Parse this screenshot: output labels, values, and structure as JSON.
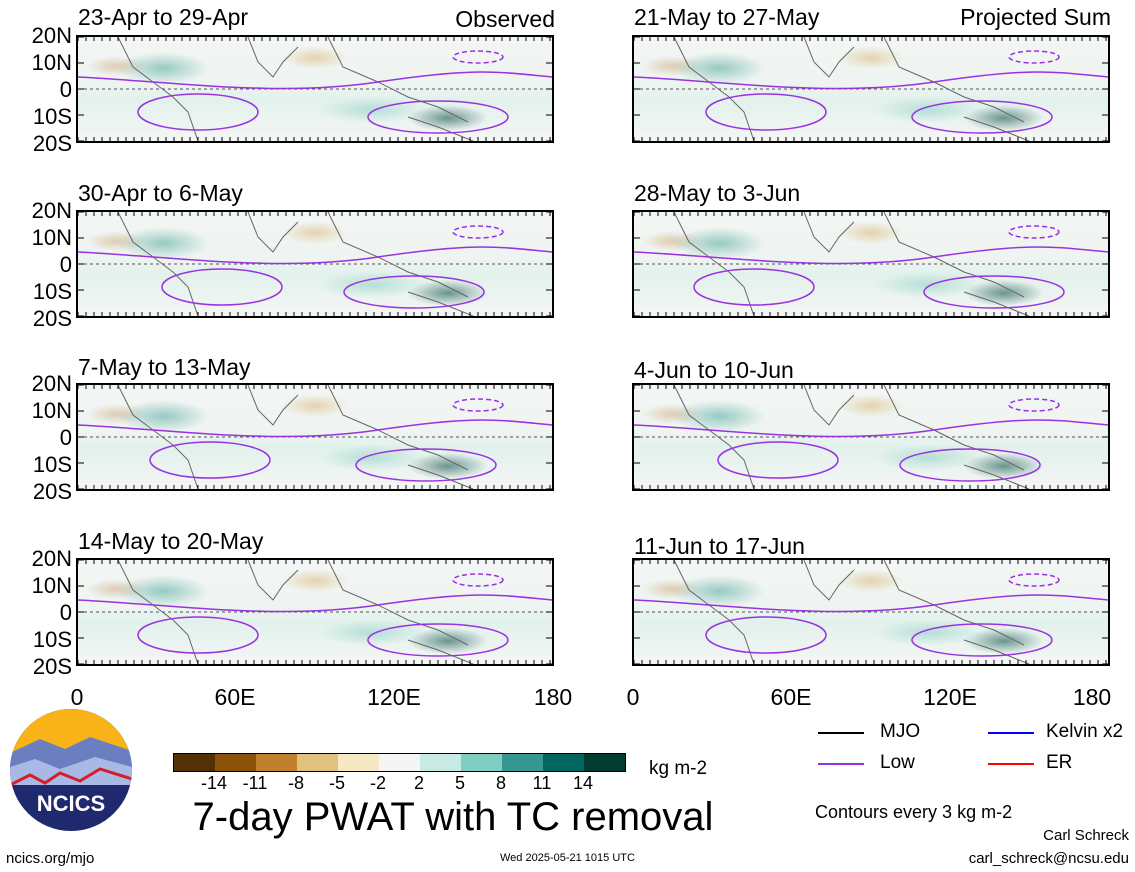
{
  "panels": [
    {
      "title": "23-Apr to 29-Apr",
      "note": "Observed"
    },
    {
      "title": "21-May to 27-May",
      "note": "Projected Sum"
    },
    {
      "title": "30-Apr to 6-May",
      "note": ""
    },
    {
      "title": "28-May to 3-Jun",
      "note": ""
    },
    {
      "title": "7-May to 13-May",
      "note": ""
    },
    {
      "title": "4-Jun to 10-Jun",
      "note": ""
    },
    {
      "title": "14-May to 20-May",
      "note": ""
    },
    {
      "title": "11-Jun to 17-Jun",
      "note": ""
    }
  ],
  "lat_ticks": [
    "20N",
    "10N",
    "0",
    "10S",
    "20S"
  ],
  "lon_ticks": [
    "0",
    "60E",
    "120E",
    "180"
  ],
  "colorbar": {
    "colors": [
      "#543005",
      "#8c510a",
      "#bf812d",
      "#dfc27d",
      "#f6e8c3",
      "#f5f5f5",
      "#c7eae5",
      "#80cdc1",
      "#35978f",
      "#01665e",
      "#003c30"
    ],
    "labels": [
      "-14",
      "-11",
      "-8",
      "-5",
      "-2",
      "2",
      "5",
      "8",
      "11",
      "14"
    ],
    "units": "kg m-2"
  },
  "legend": {
    "items": [
      {
        "label": "MJO",
        "color": "#000000"
      },
      {
        "label": "Kelvin x2",
        "color": "#0000ff"
      },
      {
        "label": "Low",
        "color": "#9932e0"
      },
      {
        "label": "ER",
        "color": "#ff0000"
      }
    ],
    "contours_note": "Contours every 3 kg m-2"
  },
  "main_title": "7-day PWAT with TC removal",
  "logo_text": "NCICS",
  "footer": {
    "url": "ncics.org/mjo",
    "timestamp": "Wed 2025-05-21 1015 UTC",
    "author": "Carl Schreck",
    "email": "carl_schreck@ncsu.edu"
  }
}
